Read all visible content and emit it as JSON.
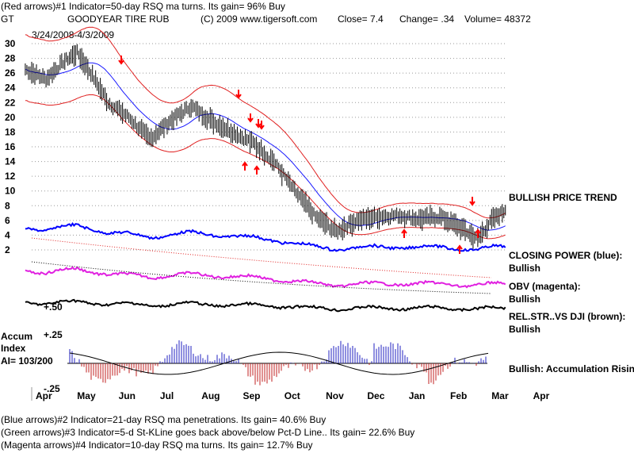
{
  "header": {
    "line1": "(Red arrows)#1 Indicator=50-day RSQ ma turns. Its gain= 96% Buy",
    "symbol": "GT",
    "company": "GOODYEAR TIRE RUB",
    "copyright": "(C) 2009 www.tigersoft.com",
    "close": "Close=  7.4",
    "change": "Change= .34",
    "volume": "Volume=  48372",
    "date_range": "3/24/2008-4/3/2009"
  },
  "right_panel": {
    "trend": "BULLISH PRICE TREND",
    "cp_label": "CLOSING POWER (blue):",
    "cp_value": "Bullish",
    "obv_label": "OBV (magenta):",
    "obv_value": "Bullish",
    "rs_label": "REL.STR..VS DJI (brown):",
    "rs_value": "Bullish",
    "accum_status": "Bullish: Accumulation Rising"
  },
  "accum_panel": {
    "title": "Accum",
    "subtitle": "Index",
    "ai": "AI= 103/200",
    "upper_label": "+.50",
    "mid_label": "+.25",
    "lower_label": "-.25"
  },
  "footer": {
    "line1": "(Blue arrows)#2 Indicator=21-day RSQ ma penetrations. Its gain= 40.6% Buy",
    "line2": "(Green arrows)#3 Indicator=5-d St-KLine goes back above/below Pct-D Line.. Its gain= 22.6% Buy",
    "line3": "(Magenta arrows)#4 Indicator=10-day RSQ ma turns. Its gain= 12.7% Buy"
  },
  "colors": {
    "price": "#000000",
    "band": "#e02020",
    "ma": "#1a1aff",
    "closing_power": "#0000ff",
    "obv": "#e020e0",
    "rel_strength": "#000000",
    "accum_pos": "#2020c0",
    "accum_neg": "#c02020",
    "arrow": "#ff0000"
  },
  "chart_data": {
    "type": "line",
    "x_categories": [
      "Apr",
      "May",
      "Jun",
      "Jul",
      "Aug",
      "Sep",
      "Oct",
      "Nov",
      "Dec",
      "Jan",
      "Feb",
      "Mar",
      "Apr"
    ],
    "y_ticks": [
      30,
      28,
      26,
      24,
      22,
      20,
      18,
      16,
      14,
      12,
      10,
      8,
      6,
      4,
      2
    ],
    "ylim": [
      2,
      30
    ],
    "grid": true,
    "series": [
      {
        "name": "",
        "points": [
          [
            "Apr",
            26.5
          ],
          [
            "Apr",
            25.2
          ],
          [
            "May",
            27.5
          ],
          [
            "May",
            28.8
          ],
          [
            "May",
            26.0
          ],
          [
            "Jun",
            22.0
          ],
          [
            "Jun",
            20.0
          ],
          [
            "Jul",
            17.0
          ],
          [
            "Jul",
            19.5
          ],
          [
            "Aug",
            21.5
          ],
          [
            "Aug",
            19.5
          ],
          [
            "Sep",
            18.0
          ],
          [
            "Sep",
            16.5
          ],
          [
            "Oct",
            14.0
          ],
          [
            "Oct",
            10.0
          ],
          [
            "Nov",
            6.5
          ],
          [
            "Nov",
            4.5
          ],
          [
            "Dec",
            6.0
          ],
          [
            "Dec",
            6.5
          ],
          [
            "Jan",
            6.7
          ],
          [
            "Jan",
            6.2
          ],
          [
            "Feb",
            6.5
          ],
          [
            "Feb",
            5.0
          ],
          [
            "Mar",
            3.5
          ],
          [
            "Mar",
            6.0
          ],
          [
            "Mar",
            7.4
          ]
        ]
      }
    ],
    "sell_arrows": [
      "May",
      "Aug",
      "Sep",
      "Sep",
      "Sep",
      "Mar"
    ],
    "buy_arrows": [
      "Sep",
      "Sep",
      "Jan",
      "Mar",
      "Mar"
    ]
  }
}
